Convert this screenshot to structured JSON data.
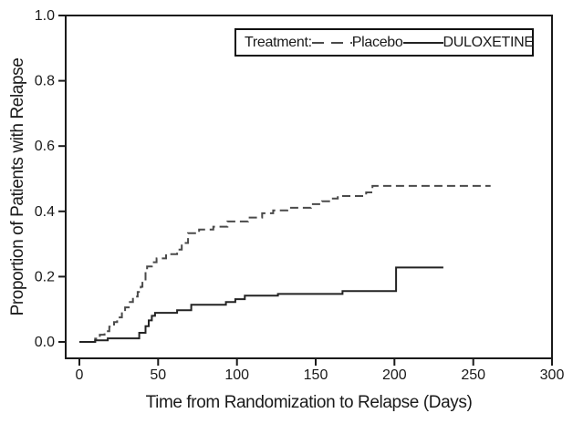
{
  "figure": {
    "background": "#ffffff",
    "axis_color": "#1a1a1a",
    "tick_label_color": "#1a1a1a"
  },
  "legend": {
    "title": "Treatment:",
    "items": [
      {
        "label": "Placebo",
        "line_style": "dashed",
        "color": "#4a4a4a"
      },
      {
        "label": "DULOXETINE",
        "line_style": "solid",
        "color": "#232323"
      }
    ]
  },
  "chart_data": {
    "type": "line",
    "subtype": "kaplan-meier-step",
    "title": "",
    "xlabel": "Time from Randomization to Relapse (Days)",
    "ylabel": "Proportion of Patients with Relapse",
    "xlim": [
      0,
      300
    ],
    "ylim": [
      0.0,
      1.0
    ],
    "xticks": [
      0,
      50,
      100,
      150,
      200,
      250,
      300
    ],
    "ytick_labels": [
      "0.0",
      "0.2",
      "0.4",
      "0.6",
      "0.8",
      "1.0"
    ],
    "grid": false,
    "legend_position": "top-right-inside",
    "series": [
      {
        "name": "Placebo",
        "style": "dashed",
        "color": "#4a4a4a",
        "points": [
          [
            0,
            0.0
          ],
          [
            10,
            0.01
          ],
          [
            13,
            0.022
          ],
          [
            16,
            0.033
          ],
          [
            19,
            0.047
          ],
          [
            22,
            0.061
          ],
          [
            24,
            0.075
          ],
          [
            27,
            0.092
          ],
          [
            29,
            0.106
          ],
          [
            32,
            0.122
          ],
          [
            34,
            0.139
          ],
          [
            37,
            0.153
          ],
          [
            39,
            0.169
          ],
          [
            40,
            0.186
          ],
          [
            42,
            0.214
          ],
          [
            43,
            0.231
          ],
          [
            46,
            0.244
          ],
          [
            49,
            0.256
          ],
          [
            55,
            0.269
          ],
          [
            62,
            0.283
          ],
          [
            65,
            0.303
          ],
          [
            69,
            0.333
          ],
          [
            76,
            0.344
          ],
          [
            85,
            0.353
          ],
          [
            94,
            0.369
          ],
          [
            107,
            0.381
          ],
          [
            116,
            0.394
          ],
          [
            123,
            0.403
          ],
          [
            132,
            0.411
          ],
          [
            147,
            0.422
          ],
          [
            154,
            0.431
          ],
          [
            160,
            0.439
          ],
          [
            164,
            0.447
          ],
          [
            182,
            0.458
          ],
          [
            186,
            0.478
          ],
          [
            261,
            0.478
          ]
        ]
      },
      {
        "name": "DULOXETINE",
        "style": "solid",
        "color": "#232323",
        "points": [
          [
            0,
            0.0
          ],
          [
            10,
            0.005
          ],
          [
            18,
            0.011
          ],
          [
            38,
            0.028
          ],
          [
            42,
            0.048
          ],
          [
            44,
            0.066
          ],
          [
            46,
            0.08
          ],
          [
            48,
            0.089
          ],
          [
            62,
            0.097
          ],
          [
            71,
            0.114
          ],
          [
            93,
            0.122
          ],
          [
            99,
            0.131
          ],
          [
            105,
            0.142
          ],
          [
            126,
            0.147
          ],
          [
            167,
            0.156
          ],
          [
            201,
            0.228
          ],
          [
            231,
            0.228
          ]
        ]
      }
    ]
  }
}
